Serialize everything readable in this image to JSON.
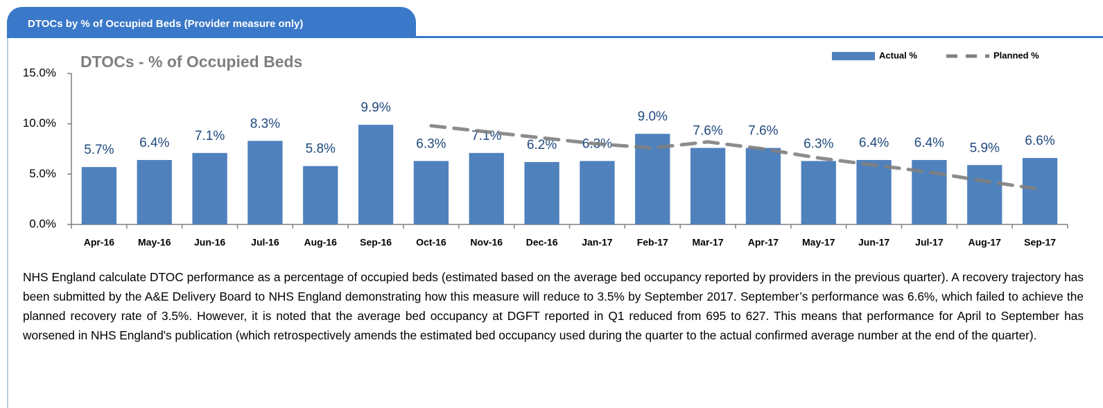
{
  "header": {
    "title": "DTOCs by % of Occupied Beds (Provider measure only)"
  },
  "chart_data": {
    "type": "bar",
    "title": "DTOCs - % of Occupied Beds",
    "categories": [
      "Apr-16",
      "May-16",
      "Jun-16",
      "Jul-16",
      "Aug-16",
      "Sep-16",
      "Oct-16",
      "Nov-16",
      "Dec-16",
      "Jan-17",
      "Feb-17",
      "Mar-17",
      "Apr-17",
      "May-17",
      "Jun-17",
      "Jul-17",
      "Aug-17",
      "Sep-17"
    ],
    "series": [
      {
        "name": "Actual %",
        "color": "#4f81bd",
        "type": "bar",
        "values": [
          5.7,
          6.4,
          7.1,
          8.3,
          5.8,
          9.9,
          6.3,
          7.1,
          6.2,
          6.3,
          9.0,
          7.6,
          7.6,
          6.3,
          6.4,
          6.4,
          5.9,
          6.6
        ],
        "value_labels": [
          "5.7%",
          "6.4%",
          "7.1%",
          "8.3%",
          "5.8%",
          "9.9%",
          "6.3%",
          "7.1%",
          "6.2%",
          "6.3%",
          "9.0%",
          "7.6%",
          "7.6%",
          "6.3%",
          "6.4%",
          "6.4%",
          "5.9%",
          "6.6%"
        ]
      },
      {
        "name": "Planned %",
        "color": "#808080",
        "type": "line",
        "dashed": true,
        "values": [
          null,
          null,
          null,
          null,
          null,
          null,
          9.8,
          9.2,
          8.6,
          8.0,
          7.6,
          8.2,
          7.5,
          6.6,
          5.9,
          5.2,
          4.3,
          3.5
        ]
      }
    ],
    "ylim": [
      0,
      15
    ],
    "yticks": [
      {
        "value": 0,
        "label": "0.0%"
      },
      {
        "value": 5,
        "label": "5.0%"
      },
      {
        "value": 10,
        "label": "10.0%"
      },
      {
        "value": 15,
        "label": "15.0%"
      }
    ],
    "grid": false,
    "legend": "top-right"
  },
  "note": "NHS England calculate DTOC performance as a percentage of occupied beds (estimated based on the average bed occupancy reported by providers in the previous quarter). A recovery trajectory has been submitted by the A&E Delivery Board to NHS England demonstrating how this measure will reduce to 3.5% by September 2017. September’s performance was 6.6%, which failed to achieve the planned recovery rate of 3.5%. However, it is noted that the average bed occupancy at DGFT reported in Q1 reduced from 695 to 627. This means that performance for April to September has worsened in NHS England's publication (which retrospectively amends the estimated bed occupancy used during the quarter to the actual confirmed average number at the end of the quarter)."
}
